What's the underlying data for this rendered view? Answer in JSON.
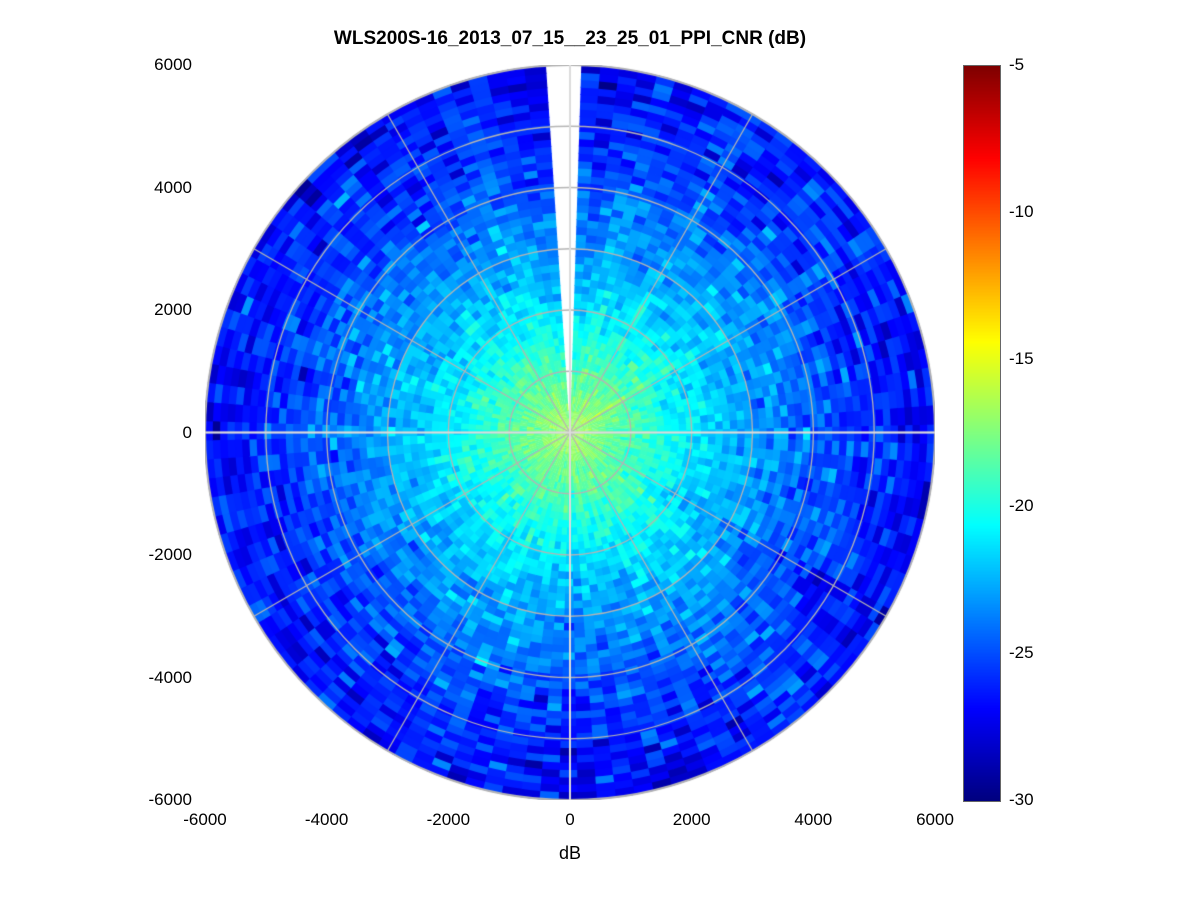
{
  "chart_data": {
    "type": "heatmap",
    "subtype": "polar-ppi-scan",
    "title": "WLS200S-16_2013_07_15__23_25_01_PPI_CNR (dB)",
    "xlabel": "dB",
    "ylabel": "",
    "xlim": [
      -6000,
      6000
    ],
    "ylim": [
      -6000,
      6000
    ],
    "xticks": [
      "-6000",
      "-4000",
      "-2000",
      "0",
      "2000",
      "4000",
      "6000"
    ],
    "yticks": [
      "6000",
      "4000",
      "2000",
      "0",
      "-2000",
      "-4000",
      "-6000"
    ],
    "colormap": "jet",
    "color_range_db": [
      -30,
      -5
    ],
    "colorbar_ticks": [
      "-5",
      "-10",
      "-15",
      "-20",
      "-25",
      "-30"
    ],
    "range_max_m": 6000,
    "azimuth_step_deg": 3,
    "azimuth_bin_origin_deg": 2,
    "range_step_m": 120,
    "radial_profile_db": [
      [
        0,
        -16.6
      ],
      [
        300,
        -17.1
      ],
      [
        600,
        -17.8
      ],
      [
        1000,
        -18.6
      ],
      [
        1500,
        -19.8
      ],
      [
        2000,
        -21.0
      ],
      [
        2500,
        -22.0
      ],
      [
        3000,
        -22.8
      ],
      [
        3500,
        -23.6
      ],
      [
        4000,
        -24.4
      ],
      [
        4500,
        -25.1
      ],
      [
        5000,
        -25.7
      ],
      [
        5500,
        -26.2
      ],
      [
        6000,
        -26.6
      ]
    ],
    "noise_std_db": 0.9,
    "azimuth_noise_std_db": 0.55,
    "missing_wedge_deg": [
      -4,
      2
    ],
    "bright_streak": {
      "azimuth_deg": 57,
      "delta_db": 1.3,
      "width_deg": 1.5
    },
    "grid": {
      "ring_spacing_m": 1000,
      "spoke_spacing_deg": 30,
      "grid_color": "#b4b4b4",
      "axis_cross_color": "#dcdcdc"
    },
    "seed": 20130715
  }
}
